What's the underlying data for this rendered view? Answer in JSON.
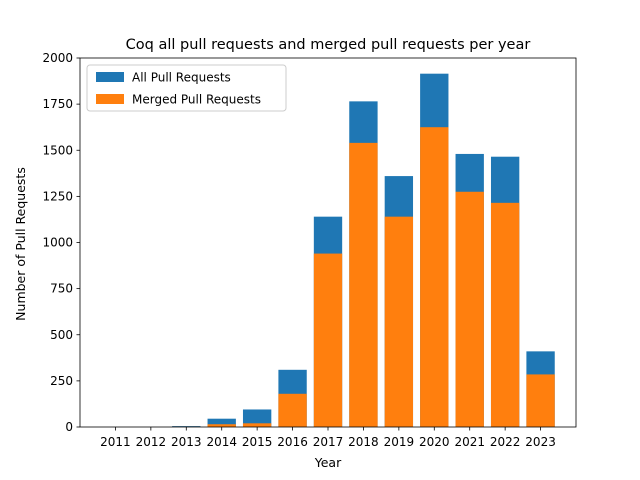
{
  "chart_data": {
    "type": "bar",
    "title": "Coq all pull requests and merged pull requests per year",
    "xlabel": "Year",
    "ylabel": "Number of Pull Requests",
    "ylim": [
      0,
      2000
    ],
    "yticks": [
      0,
      250,
      500,
      750,
      1000,
      1250,
      1500,
      1750,
      2000
    ],
    "ytick_labels": [
      "0",
      "250",
      "500",
      "750",
      "1000",
      "1250",
      "1500",
      "1750",
      "2000"
    ],
    "categories": [
      "2011",
      "2012",
      "2013",
      "2014",
      "2015",
      "2016",
      "2017",
      "2018",
      "2019",
      "2020",
      "2021",
      "2022",
      "2023"
    ],
    "series": [
      {
        "name": "All Pull Requests",
        "color": "#1f77b4",
        "values": [
          0,
          0,
          5,
          45,
          95,
          310,
          1140,
          1765,
          1360,
          1915,
          1480,
          1465,
          410
        ]
      },
      {
        "name": "Merged Pull Requests",
        "color": "#ff7f0e",
        "values": [
          0,
          0,
          2,
          15,
          20,
          180,
          940,
          1540,
          1140,
          1625,
          1275,
          1215,
          285
        ]
      }
    ],
    "legend_position": "top-left",
    "grid": false
  }
}
